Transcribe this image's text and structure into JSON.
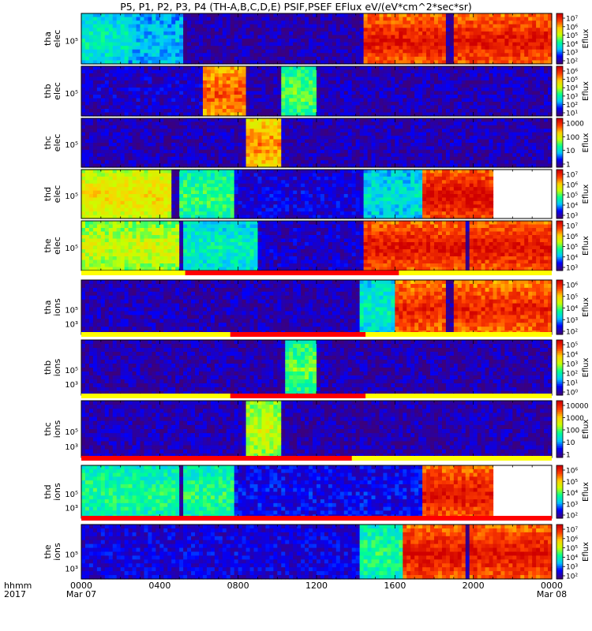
{
  "chart_data": {
    "type": "heatmap",
    "title": "P5, P1, P2, P3, P4 (TH-A,B,C,D,E) PSIF,PSEF EFlux eV/(eV*cm^2*sec*sr)",
    "time_axis": {
      "label_line1": "hhmm",
      "label_line2": "2017",
      "ticks": [
        {
          "time": "0000",
          "date": "Mar 07",
          "hour": 0
        },
        {
          "time": "0400",
          "date": "",
          "hour": 4
        },
        {
          "time": "0800",
          "date": "",
          "hour": 8
        },
        {
          "time": "1200",
          "date": "",
          "hour": 12
        },
        {
          "time": "1600",
          "date": "",
          "hour": 16
        },
        {
          "time": "2000",
          "date": "",
          "hour": 20
        },
        {
          "time": "0000",
          "date": "Mar 08",
          "hour": 24
        }
      ],
      "range_hours": [
        0,
        24
      ]
    },
    "colormap": [
      "#3a007f",
      "#0000ff",
      "#00c8ff",
      "#00ff90",
      "#c8ff00",
      "#ffd000",
      "#ff4000",
      "#d00000"
    ],
    "panels": [
      {
        "probe": "tha",
        "species": "elec",
        "ytick": "10⁵",
        "cbar_label": "Eflux",
        "cbar_ticks": [
          "10⁷",
          "10⁶",
          "10⁵",
          "10⁴",
          "10³",
          "10²"
        ],
        "segments": [
          [
            0,
            2.5,
            0.35
          ],
          [
            2.5,
            5.4,
            0.28
          ],
          [
            5.4,
            14.5,
            0.05
          ],
          [
            14.5,
            24,
            0.88
          ]
        ],
        "dropouts": [
          5.3,
          18.8
        ]
      },
      {
        "probe": "thb",
        "species": "elec",
        "ytick": "10⁵",
        "cbar_label": "Eflux",
        "cbar_ticks": [
          "10⁶",
          "10⁵",
          "10⁴",
          "10³",
          "10²",
          "10¹"
        ],
        "segments": [
          [
            0,
            6.3,
            0.08
          ],
          [
            6.3,
            8.5,
            0.78
          ],
          [
            8.5,
            10.2,
            0.05
          ],
          [
            10.2,
            12.1,
            0.45
          ],
          [
            12.1,
            24,
            0.06
          ]
        ],
        "dropouts": []
      },
      {
        "probe": "thc",
        "species": "elec",
        "ytick": "10⁵",
        "cbar_label": "Eflux",
        "cbar_ticks": [
          "1000",
          "100",
          "10",
          "1"
        ],
        "segments": [
          [
            0,
            8.4,
            0.06
          ],
          [
            8.4,
            10.2,
            0.72
          ],
          [
            10.2,
            24,
            0.06
          ]
        ],
        "dropouts": []
      },
      {
        "probe": "thd",
        "species": "elec",
        "ytick": "10⁵",
        "cbar_label": "Eflux",
        "cbar_ticks": [
          "10⁷",
          "10⁶",
          "10⁵",
          "10⁴",
          "10³"
        ],
        "segments": [
          [
            0,
            4.6,
            0.62
          ],
          [
            4.6,
            7.8,
            0.42
          ],
          [
            7.8,
            14.5,
            0.1
          ],
          [
            14.5,
            17.5,
            0.32
          ],
          [
            17.5,
            21.0,
            0.9
          ]
        ],
        "dropouts": [
          4.8
        ]
      },
      {
        "probe": "the",
        "species": "elec",
        "ytick": "10⁵",
        "cbar_label": "Eflux",
        "cbar_ticks": [
          "10⁷",
          "10⁶",
          "10⁵",
          "10⁴",
          "10³"
        ],
        "segments": [
          [
            0,
            5.2,
            0.55
          ],
          [
            5.2,
            9.0,
            0.35
          ],
          [
            9.0,
            14.5,
            0.08
          ],
          [
            14.5,
            24,
            0.88
          ]
        ],
        "dropouts": [
          5.1,
          19.7
        ]
      },
      {
        "probe": "tha",
        "species": "ions",
        "ytick": "10⁵",
        "ytick_low": "10³",
        "cbar_label": "Eflux",
        "cbar_ticks": [
          "10⁶",
          "10⁵",
          "10⁴",
          "10³",
          "10²"
        ],
        "segments": [
          [
            0,
            14.3,
            0.06
          ],
          [
            14.3,
            16.0,
            0.35
          ],
          [
            16.0,
            24,
            0.85
          ]
        ],
        "dropouts": [
          18.8
        ]
      },
      {
        "probe": "thb",
        "species": "ions",
        "ytick": "10⁵",
        "ytick_low": "10³",
        "cbar_label": "Eflux",
        "cbar_ticks": [
          "10⁵",
          "10⁴",
          "10³",
          "10²",
          "10¹",
          "10⁰"
        ],
        "segments": [
          [
            0,
            10.5,
            0.05
          ],
          [
            10.5,
            12.0,
            0.45
          ],
          [
            12.0,
            24,
            0.05
          ]
        ],
        "dropouts": []
      },
      {
        "probe": "thc",
        "species": "ions",
        "ytick": "10⁵",
        "ytick_low": "10³",
        "cbar_label": "Eflux",
        "cbar_ticks": [
          "10000",
          "1000",
          "100",
          "10",
          "1"
        ],
        "segments": [
          [
            0,
            8.4,
            0.06
          ],
          [
            8.4,
            10.2,
            0.55
          ],
          [
            10.2,
            24,
            0.05
          ]
        ],
        "dropouts": []
      },
      {
        "probe": "thd",
        "species": "ions",
        "ytick": "10⁵",
        "ytick_low": "10³",
        "cbar_label": "Eflux",
        "cbar_ticks": [
          "10⁶",
          "10⁵",
          "10⁴",
          "10³",
          "10²"
        ],
        "segments": [
          [
            0,
            7.8,
            0.4
          ],
          [
            7.8,
            17.5,
            0.12
          ],
          [
            17.5,
            21.0,
            0.88
          ]
        ],
        "dropouts": [
          5.1
        ]
      },
      {
        "probe": "the",
        "species": "ions",
        "ytick": "10⁵",
        "ytick_low": "10³",
        "cbar_label": "Eflux",
        "cbar_ticks": [
          "10⁷",
          "10⁶",
          "10⁵",
          "10⁴",
          "10³",
          "10²"
        ],
        "segments": [
          [
            0,
            14.3,
            0.1
          ],
          [
            14.3,
            16.5,
            0.4
          ],
          [
            16.5,
            24,
            0.88
          ]
        ],
        "dropouts": [
          19.7
        ]
      }
    ],
    "mode_bars": [
      {
        "after_panel": 4,
        "red_start_hour": 5.3,
        "red_end_hour": 16.2
      },
      {
        "after_panel": 5,
        "red_start_hour": 7.6,
        "red_end_hour": 14.5
      },
      {
        "after_panel": 6,
        "red_start_hour": 7.6,
        "red_end_hour": 14.5
      },
      {
        "after_panel": 7,
        "red_start_hour": 0,
        "red_end_hour": 13.8
      },
      {
        "after_panel": 8,
        "red_start_hour": 0,
        "red_end_hour": 24
      }
    ]
  }
}
